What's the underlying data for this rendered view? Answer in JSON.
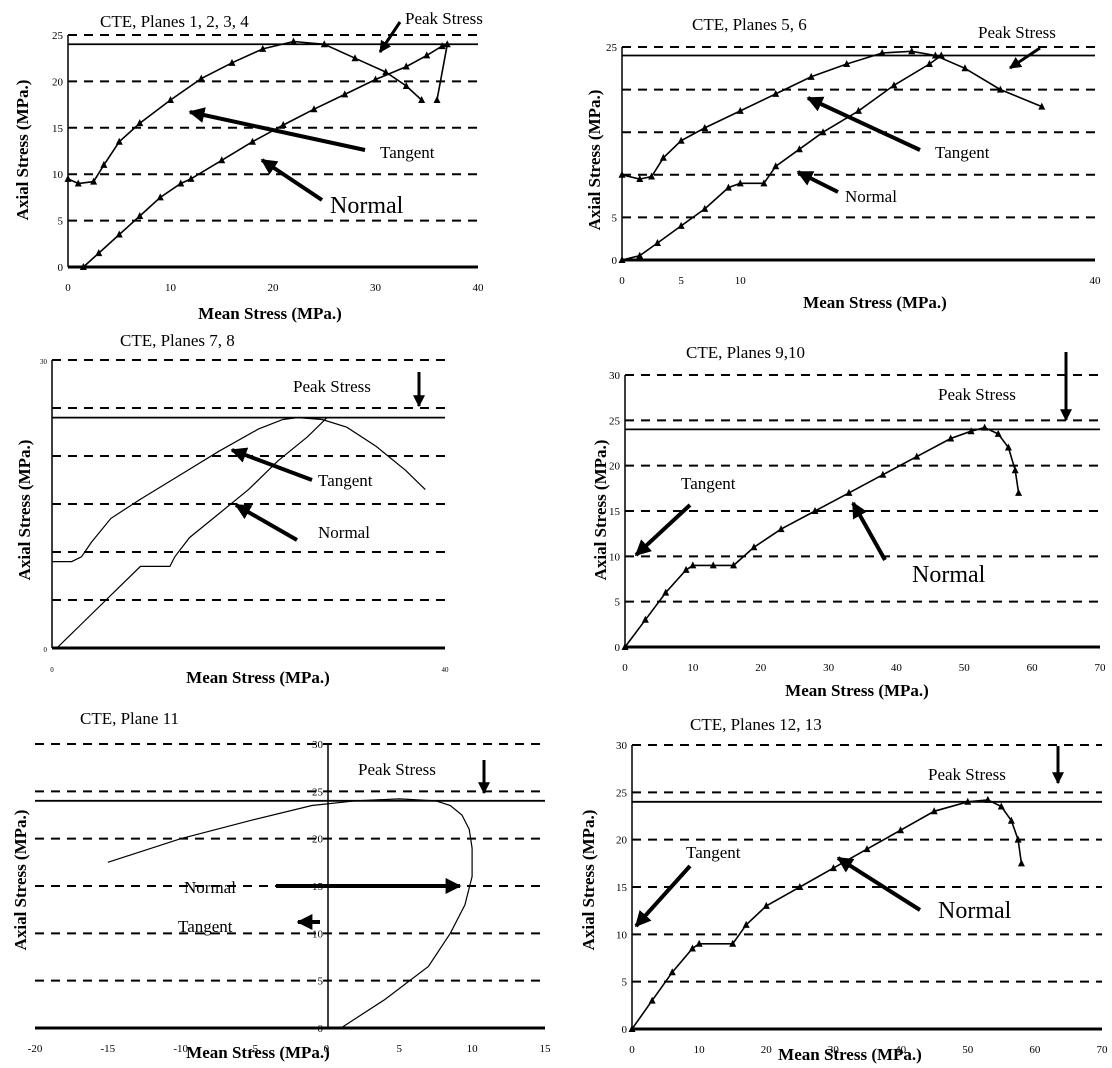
{
  "chart_data": [
    {
      "type": "line",
      "title": "CTE, Planes 1, 2, 3, 4",
      "xlabel": "Mean Stress (MPa.)",
      "ylabel": "Axial Stress (MPa.)",
      "xlim": [
        0,
        40
      ],
      "ylim": [
        0,
        25
      ],
      "xticks": [
        "0",
        "10",
        "20",
        "30",
        "40"
      ],
      "yticks": [
        "0",
        "5",
        "10",
        "15",
        "20",
        "25"
      ],
      "peak_stress": 24,
      "marker": "triangle",
      "grid": "dashed horizontal",
      "annotations": [
        "Peak Stress",
        "Tangent",
        "Normal"
      ],
      "series": [
        {
          "name": "Tangent",
          "x": [
            0,
            1,
            2.5,
            3.5,
            5,
            7,
            10,
            13,
            16,
            19,
            22,
            25,
            28,
            31,
            33,
            34.5
          ],
          "y": [
            9.5,
            9,
            9.2,
            11,
            13.5,
            15.5,
            18,
            20.3,
            22,
            23.5,
            24.3,
            24,
            22.5,
            21,
            19.5,
            18
          ]
        },
        {
          "name": "Normal",
          "x": [
            1.5,
            3,
            5,
            7,
            9,
            11,
            12,
            15,
            18,
            21,
            24,
            27,
            30,
            33,
            35,
            36.5,
            37,
            36
          ],
          "y": [
            0,
            1.5,
            3.5,
            5.5,
            7.5,
            9,
            9.5,
            11.5,
            13.5,
            15.3,
            17,
            18.6,
            20.2,
            21.6,
            22.8,
            23.8,
            24,
            18
          ]
        }
      ]
    },
    {
      "type": "line",
      "title": "CTE, Planes 5, 6",
      "xlabel": "Mean Stress (MPa.)",
      "ylabel": "Axial Stress (MPa.)",
      "xlim": [
        0,
        40
      ],
      "ylim": [
        0,
        25
      ],
      "xticks": [
        "0",
        "5",
        "10",
        "",
        "",
        "",
        "",
        "",
        "40"
      ],
      "yticks": [
        "0",
        "5",
        "",
        "",
        "",
        "25"
      ],
      "peak_stress": 24,
      "marker": "triangle",
      "grid": "dashed horizontal",
      "annotations": [
        "Peak Stress",
        "Tangent",
        "Normal"
      ],
      "series": [
        {
          "name": "Tangent",
          "x": [
            0,
            1.5,
            2.5,
            3.5,
            5,
            7,
            10,
            13,
            16,
            19,
            22,
            24.5,
            26.5,
            29,
            32,
            35.5
          ],
          "y": [
            10,
            9.5,
            9.8,
            12,
            14,
            15.5,
            17.5,
            19.5,
            21.5,
            23,
            24.3,
            24.5,
            24,
            22.5,
            20,
            18
          ]
        },
        {
          "name": "Normal",
          "x": [
            0,
            1.5,
            3,
            5,
            7,
            9,
            10,
            12,
            13,
            15,
            17,
            20,
            23,
            26,
            27
          ],
          "y": [
            0,
            0.5,
            2,
            4,
            6,
            8.5,
            9,
            9,
            11,
            13,
            15,
            17.5,
            20.5,
            23,
            24
          ]
        }
      ]
    },
    {
      "type": "line",
      "title": "CTE, Planes 7, 8",
      "xlabel": "Mean Stress (MPa.)",
      "ylabel": "Axial Stress (MPa.)",
      "xlim": [
        0,
        40
      ],
      "ylim": [
        0,
        30
      ],
      "xticks": [
        "0",
        "",
        "",
        "",
        "",
        "",
        "",
        "",
        "40"
      ],
      "yticks": [
        "0",
        "",
        "",
        "",
        "",
        "",
        "30"
      ],
      "peak_stress": 24,
      "marker": "none",
      "grid": "dashed horizontal",
      "annotations": [
        "Peak Stress",
        "Tangent",
        "Normal"
      ],
      "series": [
        {
          "name": "Tangent",
          "x": [
            0,
            2,
            3,
            4,
            6,
            9,
            13,
            17,
            21,
            23.5,
            25,
            27.5,
            30,
            33,
            36,
            38
          ],
          "y": [
            9,
            9,
            9.5,
            11,
            13.5,
            15.5,
            18,
            20.5,
            22.8,
            23.8,
            24,
            23.8,
            23,
            21,
            18.5,
            16.5
          ]
        },
        {
          "name": "Normal",
          "x": [
            0.5,
            3,
            6,
            9,
            12,
            12.5,
            14,
            17,
            20,
            23,
            26,
            28
          ],
          "y": [
            0,
            2.5,
            5.5,
            8.5,
            8.5,
            9.5,
            11.5,
            14,
            16.5,
            19.5,
            22,
            24
          ]
        }
      ]
    },
    {
      "type": "line",
      "title": "CTE, Planes 9,10",
      "xlabel": "Mean Stress (MPa.)",
      "ylabel": "Axial Stress (MPa.)",
      "xlim": [
        0,
        70
      ],
      "ylim": [
        0,
        30
      ],
      "xticks": [
        "0",
        "10",
        "20",
        "30",
        "40",
        "50",
        "60",
        "70"
      ],
      "yticks": [
        "0",
        "5",
        "10",
        "15",
        "20",
        "25",
        "30"
      ],
      "peak_stress": 24,
      "marker": "triangle",
      "grid": "dashed horizontal",
      "annotations": [
        "Peak Stress",
        "Tangent",
        "Normal"
      ],
      "series": [
        {
          "name": "Normal",
          "x": [
            0,
            3,
            6,
            9,
            10,
            13,
            16,
            19,
            23,
            28,
            33,
            38,
            43,
            48,
            51,
            53,
            55,
            56.5,
            57.5,
            58
          ],
          "y": [
            0,
            3,
            6,
            8.5,
            9,
            9,
            9,
            11,
            13,
            15,
            17,
            19,
            21,
            23,
            23.8,
            24.2,
            23.5,
            22,
            19.5,
            17
          ]
        }
      ]
    },
    {
      "type": "line",
      "title": "CTE, Plane  11",
      "xlabel": "Mean Stress (MPa.)",
      "ylabel": "Axial Stress (MPa.)",
      "xlim": [
        -20,
        15
      ],
      "ylim": [
        0,
        30
      ],
      "xticks": [
        "-20",
        "-15",
        "-10",
        "-5",
        "0",
        "5",
        "10",
        "15"
      ],
      "yticks": [
        "0",
        "5",
        "10",
        "15",
        "20",
        "25",
        "30"
      ],
      "peak_stress": 24,
      "marker": "none",
      "grid": "dashed horizontal",
      "annotations": [
        "Peak Stress",
        "Normal",
        "Tangent"
      ],
      "series": [
        {
          "name": "Tangent",
          "x": [
            -15,
            -10,
            -5,
            -1,
            2,
            5,
            7.5
          ],
          "y": [
            17.5,
            20,
            22,
            23.5,
            24,
            24.2,
            24
          ]
        },
        {
          "name": "Normal",
          "x": [
            1,
            4,
            7,
            8.5,
            9.5,
            10,
            10,
            9.8,
            9.3,
            8.5,
            7.5
          ],
          "y": [
            0,
            3,
            6.5,
            10,
            13,
            16,
            19,
            21,
            22.5,
            23.5,
            24
          ]
        }
      ]
    },
    {
      "type": "line",
      "title": "CTE, Planes 12, 13",
      "xlabel": "Mean Stress (MPa.)",
      "ylabel": "Axial Stress (MPa.)",
      "xlim": [
        0,
        70
      ],
      "ylim": [
        0,
        30
      ],
      "xticks": [
        "0",
        "10",
        "20",
        "30",
        "40",
        "50",
        "60",
        "70"
      ],
      "yticks": [
        "0",
        "5",
        "10",
        "15",
        "20",
        "25",
        "30"
      ],
      "peak_stress": 24,
      "marker": "triangle",
      "grid": "dashed horizontal",
      "annotations": [
        "Peak Stress",
        "Tangent",
        "Normal"
      ],
      "series": [
        {
          "name": "Normal",
          "x": [
            0,
            3,
            6,
            9,
            10,
            15,
            17,
            20,
            25,
            30,
            35,
            40,
            45,
            50,
            53,
            55,
            56.5,
            57.5,
            58
          ],
          "y": [
            0,
            3,
            6,
            8.5,
            9,
            9,
            11,
            13,
            15,
            17,
            19,
            21,
            23,
            24,
            24.2,
            23.5,
            22,
            20,
            17.5
          ]
        }
      ]
    }
  ]
}
